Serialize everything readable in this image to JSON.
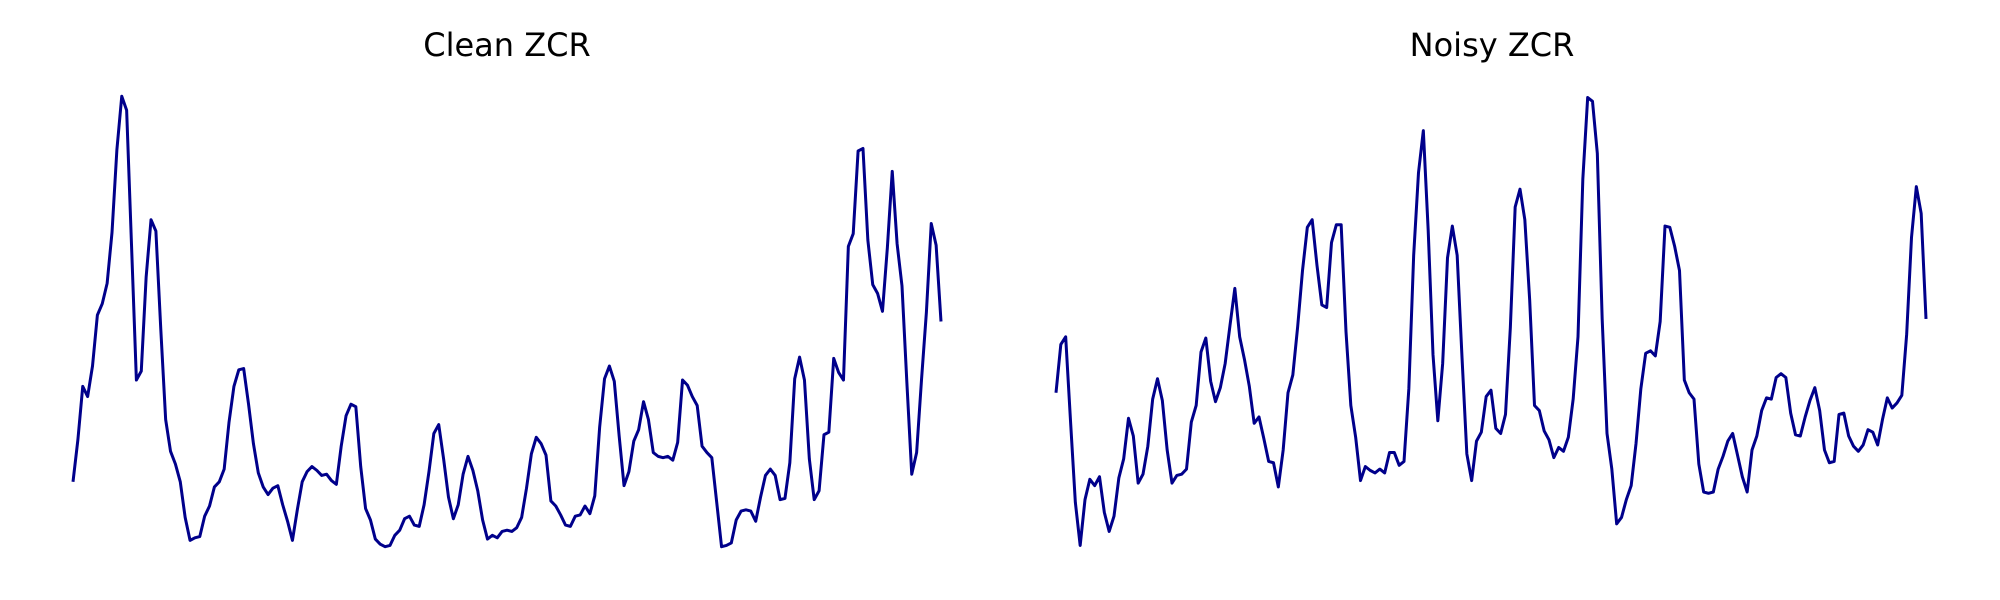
{
  "chart_data": [
    {
      "type": "line",
      "title": "Clean ZCR",
      "color": "#00008b",
      "ylim": [
        0,
        0.356
      ],
      "values": [
        0.052,
        0.085,
        0.127,
        0.119,
        0.143,
        0.183,
        0.192,
        0.208,
        0.248,
        0.313,
        0.355,
        0.344,
        0.238,
        0.132,
        0.139,
        0.213,
        0.258,
        0.249,
        0.172,
        0.101,
        0.076,
        0.066,
        0.052,
        0.024,
        0.006,
        0.008,
        0.009,
        0.025,
        0.033,
        0.048,
        0.052,
        0.062,
        0.099,
        0.127,
        0.14,
        0.141,
        0.113,
        0.082,
        0.059,
        0.048,
        0.042,
        0.047,
        0.049,
        0.034,
        0.021,
        0.006,
        0.03,
        0.052,
        0.06,
        0.064,
        0.061,
        0.057,
        0.058,
        0.053,
        0.05,
        0.08,
        0.104,
        0.113,
        0.111,
        0.064,
        0.031,
        0.022,
        0.007,
        0.003,
        0.001,
        0.002,
        0.01,
        0.014,
        0.023,
        0.025,
        0.018,
        0.017,
        0.034,
        0.06,
        0.09,
        0.097,
        0.07,
        0.04,
        0.023,
        0.034,
        0.058,
        0.072,
        0.061,
        0.045,
        0.022,
        0.007,
        0.01,
        0.008,
        0.013,
        0.014,
        0.013,
        0.016,
        0.024,
        0.047,
        0.074,
        0.087,
        0.082,
        0.073,
        0.037,
        0.033,
        0.026,
        0.018,
        0.017,
        0.025,
        0.026,
        0.033,
        0.027,
        0.041,
        0.095,
        0.133,
        0.143,
        0.131,
        0.088,
        0.049,
        0.06,
        0.084,
        0.093,
        0.115,
        0.101,
        0.075,
        0.072,
        0.071,
        0.072,
        0.069,
        0.083,
        0.132,
        0.128,
        0.119,
        0.112,
        0.08,
        0.075,
        0.071,
        0.036,
        0.001,
        0.002,
        0.004,
        0.022,
        0.029,
        0.03,
        0.029,
        0.021,
        0.04,
        0.057,
        0.062,
        0.057,
        0.038,
        0.039,
        0.067,
        0.133,
        0.15,
        0.132,
        0.07,
        0.038,
        0.045,
        0.089,
        0.091,
        0.149,
        0.138,
        0.132,
        0.237,
        0.247,
        0.312,
        0.314,
        0.242,
        0.207,
        0.2,
        0.186,
        0.236,
        0.296,
        0.239,
        0.206,
        0.13,
        0.058,
        0.075,
        0.132,
        0.185,
        0.255,
        0.238,
        0.178
      ]
    },
    {
      "type": "line",
      "title": "Noisy ZCR",
      "color": "#00008b",
      "ylim": [
        0,
        0.356
      ],
      "values": [
        0.122,
        0.16,
        0.166,
        0.1,
        0.036,
        0.002,
        0.038,
        0.054,
        0.049,
        0.056,
        0.028,
        0.013,
        0.025,
        0.055,
        0.07,
        0.102,
        0.088,
        0.051,
        0.058,
        0.08,
        0.117,
        0.133,
        0.116,
        0.077,
        0.051,
        0.057,
        0.058,
        0.062,
        0.099,
        0.112,
        0.154,
        0.165,
        0.131,
        0.115,
        0.126,
        0.145,
        0.175,
        0.204,
        0.166,
        0.148,
        0.127,
        0.098,
        0.103,
        0.086,
        0.068,
        0.067,
        0.048,
        0.077,
        0.122,
        0.136,
        0.174,
        0.218,
        0.252,
        0.258,
        0.222,
        0.191,
        0.189,
        0.24,
        0.254,
        0.254,
        0.17,
        0.112,
        0.087,
        0.053,
        0.064,
        0.061,
        0.059,
        0.062,
        0.059,
        0.075,
        0.075,
        0.065,
        0.068,
        0.125,
        0.23,
        0.295,
        0.328,
        0.25,
        0.152,
        0.1,
        0.145,
        0.228,
        0.253,
        0.23,
        0.15,
        0.074,
        0.053,
        0.084,
        0.091,
        0.119,
        0.124,
        0.094,
        0.09,
        0.105,
        0.173,
        0.268,
        0.282,
        0.258,
        0.195,
        0.112,
        0.108,
        0.092,
        0.085,
        0.071,
        0.079,
        0.076,
        0.087,
        0.117,
        0.166,
        0.29,
        0.354,
        0.351,
        0.31,
        0.18,
        0.09,
        0.062,
        0.019,
        0.024,
        0.038,
        0.049,
        0.082,
        0.125,
        0.153,
        0.155,
        0.151,
        0.178,
        0.253,
        0.252,
        0.237,
        0.218,
        0.132,
        0.122,
        0.117,
        0.066,
        0.044,
        0.043,
        0.044,
        0.062,
        0.072,
        0.084,
        0.09,
        0.073,
        0.056,
        0.044,
        0.077,
        0.088,
        0.108,
        0.118,
        0.117,
        0.134,
        0.137,
        0.134,
        0.106,
        0.089,
        0.088,
        0.103,
        0.116,
        0.126,
        0.108,
        0.077,
        0.067,
        0.068,
        0.105,
        0.106,
        0.088,
        0.08,
        0.076,
        0.081,
        0.093,
        0.091,
        0.081,
        0.101,
        0.118,
        0.11,
        0.114,
        0.12,
        0.168,
        0.244,
        0.284,
        0.263,
        0.18
      ]
    }
  ]
}
